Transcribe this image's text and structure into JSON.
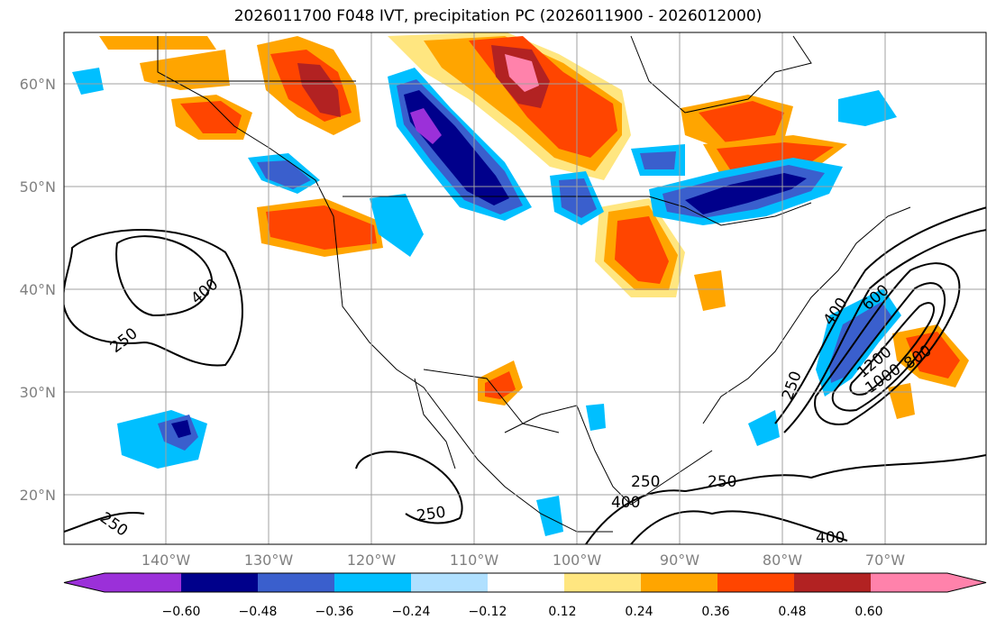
{
  "title": "2026011700 F048 IVT, precipitation PC (2026011900 - 2026012000)",
  "map": {
    "lat_ticks": [
      "60°N",
      "50°N",
      "40°N",
      "30°N",
      "20°N"
    ],
    "lon_ticks": [
      "140°W",
      "130°W",
      "120°W",
      "110°W",
      "100°W",
      "90°W",
      "80°W",
      "70°W"
    ],
    "contour_labels": [
      "250",
      "400",
      "250",
      "250",
      "400",
      "600",
      "1200",
      "1000",
      "800",
      "250",
      "250",
      "250",
      "400",
      "400"
    ]
  },
  "colorbar": {
    "tick_labels": [
      "−0.60",
      "−0.48",
      "−0.36",
      "−0.24",
      "−0.12",
      "0.12",
      "0.24",
      "0.36",
      "0.48",
      "0.60"
    ],
    "colors": [
      "#9b30d9",
      "#00008b",
      "#3a5fcd",
      "#00bfff",
      "#b0e0ff",
      "#ffffff",
      "#ffe680",
      "#ffa500",
      "#ff4500",
      "#b22222",
      "#ff82ab"
    ]
  },
  "colors": {
    "grid": "#a0a0a0",
    "tick_text": "#808080"
  }
}
